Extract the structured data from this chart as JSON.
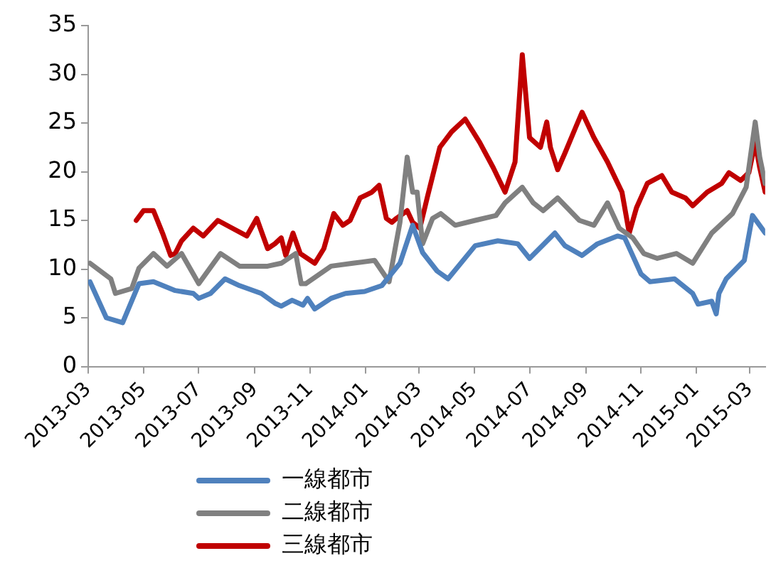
{
  "chart_data": {
    "type": "line",
    "x": [
      "2013-03-03",
      "2013-03-21",
      "2013-04-08",
      "2013-04-26",
      "2013-05-12",
      "2013-06-05",
      "2013-06-25",
      "2013-07-01",
      "2013-07-14",
      "2013-07-30",
      "2013-08-15",
      "2013-09-08",
      "2013-09-23",
      "2013-09-30",
      "2013-10-12",
      "2013-10-24",
      "2013-10-29",
      "2013-11-06",
      "2013-11-24",
      "2013-12-10",
      "2013-12-31",
      "2014-01-19",
      "2014-02-08",
      "2014-02-22",
      "2014-03-05",
      "2014-03-21",
      "2014-04-02",
      "2014-05-02",
      "2014-05-27",
      "2014-06-18",
      "2014-07-01",
      "2014-07-29",
      "2014-08-09",
      "2014-08-28",
      "2014-09-14",
      "2014-10-06",
      "2014-10-14",
      "2014-11-01",
      "2014-11-11",
      "2014-12-08",
      "2014-12-28",
      "2015-01-03",
      "2015-01-18",
      "2015-01-23",
      "2015-01-26",
      "2015-02-03",
      "2015-02-23",
      "2015-03-04",
      "2015-03-18"
    ],
    "series": [
      {
        "name": "一線都市",
        "color": "#4f81bd",
        "values": [
          8.7,
          5.0,
          4.5,
          8.5,
          8.7,
          7.8,
          7.5,
          7.0,
          7.5,
          9.0,
          8.3,
          7.5,
          6.5,
          6.2,
          6.8,
          6.3,
          7.0,
          5.9,
          7.0,
          7.5,
          7.7,
          8.3,
          10.6,
          14.5,
          11.7,
          9.8,
          9.0,
          12.4,
          12.9,
          12.6,
          11.1,
          13.7,
          12.4,
          11.4,
          12.6,
          13.4,
          13.2,
          9.5,
          8.7,
          9.0,
          7.5,
          6.4,
          6.7,
          5.4,
          7.5,
          9.0,
          10.9,
          15.5,
          13.7
        ]
      },
      {
        "name": "二線都市",
        "color": "#808080",
        "x": [
          "2013-03-03",
          "2013-03-26",
          "2013-03-31",
          "2013-04-18",
          "2013-04-26",
          "2013-05-12",
          "2013-05-27",
          "2013-06-12",
          "2013-07-01",
          "2013-07-25",
          "2013-08-15",
          "2013-09-15",
          "2013-09-30",
          "2013-10-16",
          "2013-10-22",
          "2013-10-27",
          "2013-11-24",
          "2013-12-18",
          "2014-01-11",
          "2014-01-27",
          "2014-02-08",
          "2014-02-16",
          "2014-02-22",
          "2014-02-27",
          "2014-03-05",
          "2014-03-16",
          "2014-03-25",
          "2014-04-10",
          "2014-05-02",
          "2014-05-25",
          "2014-06-04",
          "2014-06-23",
          "2014-07-05",
          "2014-07-16",
          "2014-08-01",
          "2014-08-25",
          "2014-09-10",
          "2014-09-25",
          "2014-10-08",
          "2014-10-23",
          "2014-11-04",
          "2014-11-19",
          "2014-12-10",
          "2014-12-28",
          "2015-01-18",
          "2015-02-10",
          "2015-02-25",
          "2015-03-07",
          "2015-03-12",
          "2015-03-18"
        ],
        "values": [
          10.6,
          9.0,
          7.5,
          8.0,
          10.1,
          11.6,
          10.3,
          11.6,
          8.5,
          11.6,
          10.3,
          10.3,
          10.6,
          11.6,
          8.5,
          8.5,
          10.3,
          10.6,
          10.9,
          8.7,
          14.8,
          21.5,
          17.9,
          17.9,
          12.6,
          15.2,
          15.7,
          14.5,
          15.0,
          15.5,
          16.8,
          18.4,
          16.8,
          16.0,
          17.3,
          15.0,
          14.5,
          16.8,
          14.2,
          13.2,
          11.6,
          11.1,
          11.6,
          10.6,
          13.7,
          15.7,
          18.4,
          25.1,
          21.5,
          18.8
        ]
      },
      {
        "name": "三線都市",
        "color": "#c00000",
        "x": [
          "2013-04-23",
          "2013-05-01",
          "2013-05-12",
          "2013-05-22",
          "2013-05-31",
          "2013-06-05",
          "2013-06-12",
          "2013-06-25",
          "2013-07-06",
          "2013-07-22",
          "2013-08-07",
          "2013-08-23",
          "2013-09-03",
          "2013-09-15",
          "2013-09-23",
          "2013-09-30",
          "2013-10-05",
          "2013-10-13",
          "2013-10-21",
          "2013-11-06",
          "2013-11-16",
          "2013-11-27",
          "2013-12-07",
          "2013-12-15",
          "2013-12-26",
          "2014-01-08",
          "2014-01-16",
          "2014-01-24",
          "2014-01-30",
          "2014-02-04",
          "2014-02-16",
          "2014-02-22",
          "2014-03-02",
          "2014-03-10",
          "2014-03-24",
          "2014-04-06",
          "2014-04-21",
          "2014-05-07",
          "2014-05-22",
          "2014-06-04",
          "2014-06-15",
          "2014-06-23",
          "2014-07-01",
          "2014-07-13",
          "2014-07-20",
          "2014-07-24",
          "2014-08-01",
          "2014-08-09",
          "2014-08-22",
          "2014-08-28",
          "2014-09-10",
          "2014-09-25",
          "2014-10-11",
          "2014-10-19",
          "2014-10-27",
          "2014-11-08",
          "2014-11-24",
          "2014-12-05",
          "2014-12-20",
          "2014-12-28",
          "2015-01-13",
          "2015-01-29",
          "2015-02-06",
          "2015-02-19",
          "2015-02-28",
          "2015-03-07",
          "2015-03-12",
          "2015-03-18"
        ],
        "values": [
          15.0,
          16.0,
          16.0,
          13.7,
          11.4,
          11.6,
          12.9,
          14.2,
          13.4,
          15.0,
          14.2,
          13.4,
          15.2,
          12.1,
          12.6,
          13.2,
          11.4,
          13.7,
          11.6,
          10.6,
          12.1,
          15.7,
          14.5,
          15.0,
          17.3,
          17.9,
          18.6,
          15.2,
          14.8,
          15.2,
          16.0,
          14.8,
          14.2,
          17.3,
          22.5,
          24.1,
          25.4,
          23.0,
          20.4,
          17.9,
          21.0,
          32.0,
          23.5,
          22.5,
          25.1,
          22.5,
          20.2,
          21.9,
          24.8,
          26.1,
          23.5,
          21.0,
          17.9,
          13.7,
          16.3,
          18.8,
          19.6,
          17.9,
          17.3,
          16.5,
          17.9,
          18.8,
          19.9,
          19.1,
          19.9,
          23.0,
          20.4,
          17.9
        ]
      }
    ],
    "xlim": [
      "2013-03-01",
      "2015-03-18"
    ],
    "xticks": [
      "2013-03",
      "2013-05",
      "2013-07",
      "2013-09",
      "2013-11",
      "2014-01",
      "2014-03",
      "2014-05",
      "2014-07",
      "2014-09",
      "2014-11",
      "2015-01",
      "2015-03"
    ],
    "ylim": [
      0,
      35
    ],
    "yticks": [
      0,
      5,
      10,
      15,
      20,
      25,
      30,
      35
    ],
    "grid": false,
    "legend": "bottom",
    "marker": "none",
    "line_style": "solid"
  }
}
